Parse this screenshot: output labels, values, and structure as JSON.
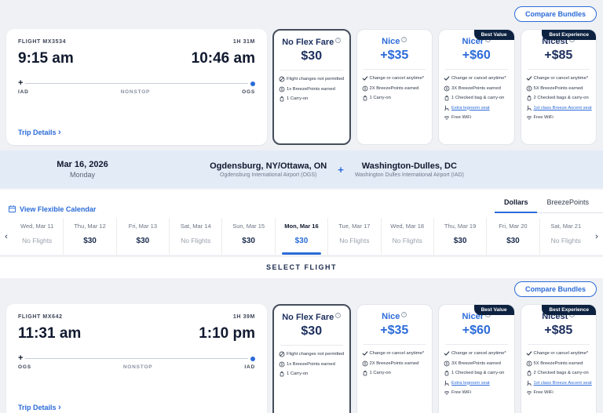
{
  "compare_bundles": "Compare Bundles",
  "select_flight_label": "SELECT FLIGHT",
  "colors": {
    "brand_blue": "#2b6bd9",
    "navy": "#1c2f5e",
    "badge_navy": "#0d2240",
    "banner_bg": "#e3ebf7"
  },
  "sections": {
    "outbound": {
      "flight_number": "FLIGHT MX3534",
      "duration": "1H 31M",
      "depart_time": "9:15 am",
      "arrive_time": "10:46 am",
      "origin": "IAD",
      "stops_label": "NONSTOP",
      "destination": "OGS",
      "trip_details_label": "Trip Details"
    },
    "inbound": {
      "flight_number": "FLIGHT MX642",
      "duration": "1H 39M",
      "depart_time": "11:31 am",
      "arrive_time": "1:10 pm",
      "origin": "OGS",
      "stops_label": "NONSTOP",
      "destination": "IAD",
      "trip_details_label": "Trip Details"
    }
  },
  "fares": [
    {
      "name": "No Flex Fare",
      "price": "$30",
      "theme": "navy",
      "selected": true,
      "badge": "",
      "features": [
        {
          "icon": "no-changes-icon",
          "text": "Flight changes not permitted"
        },
        {
          "icon": "points-icon",
          "text": "1x BreezePoints earned"
        },
        {
          "icon": "bag-icon",
          "text": "1 Carry-on"
        }
      ]
    },
    {
      "name": "Nice",
      "price": "+$35",
      "theme": "blue",
      "selected": false,
      "badge": "",
      "features": [
        {
          "icon": "check-icon",
          "text": "Change or cancel anytime*"
        },
        {
          "icon": "points-icon",
          "text": "2X BreezePoints earned"
        },
        {
          "icon": "bag-icon",
          "text": "1 Carry-on"
        }
      ]
    },
    {
      "name": "Nicer",
      "price": "+$60",
      "theme": "blue",
      "selected": false,
      "badge": "Best Value",
      "features": [
        {
          "icon": "check-icon",
          "text": "Change or cancel anytime*"
        },
        {
          "icon": "points-icon",
          "text": "3X BreezePoints earned"
        },
        {
          "icon": "bag-icon",
          "text": "1 Checked bag & carry-on"
        },
        {
          "icon": "seat-icon",
          "text": "Extra legroom seat",
          "link": true
        },
        {
          "icon": "wifi-icon",
          "text": "Free WiFi"
        }
      ]
    },
    {
      "name": "Nicest",
      "price": "+$85",
      "theme": "navy",
      "selected": false,
      "badge": "Best Experience",
      "features": [
        {
          "icon": "check-icon",
          "text": "Change or cancel anytime*"
        },
        {
          "icon": "points-icon",
          "text": "5X BreezePoints earned"
        },
        {
          "icon": "bag-icon",
          "text": "2 Checked bags & carry-on"
        },
        {
          "icon": "seat-icon",
          "text": "1st class Breeze Ascent seat",
          "link": true
        },
        {
          "icon": "wifi-icon",
          "text": "Free WiFi"
        }
      ]
    }
  ],
  "route_banner": {
    "date": "Mar 16, 2026",
    "day": "Monday",
    "from_city": "Ogdensburg, NY/Ottawa, ON",
    "from_airport": "Ogdensburg International Airport (OGS)",
    "to_city": "Washington-Dulles, DC",
    "to_airport": "Washington Dulles International Airport (IAD)"
  },
  "calendar": {
    "view_flexible_label": "View Flexible Calendar",
    "tabs": [
      {
        "label": "Dollars",
        "active": true
      },
      {
        "label": "BreezePoints",
        "active": false
      }
    ],
    "days": [
      {
        "day": "Wed, Mar 11",
        "price": "No Flights",
        "no_flights": true,
        "selected": false
      },
      {
        "day": "Thu, Mar 12",
        "price": "$30",
        "no_flights": false,
        "selected": false
      },
      {
        "day": "Fri, Mar 13",
        "price": "$30",
        "no_flights": false,
        "selected": false
      },
      {
        "day": "Sat, Mar 14",
        "price": "No Flights",
        "no_flights": true,
        "selected": false
      },
      {
        "day": "Sun, Mar 15",
        "price": "$30",
        "no_flights": false,
        "selected": false
      },
      {
        "day": "Mon, Mar 16",
        "price": "$30",
        "no_flights": false,
        "selected": true
      },
      {
        "day": "Tue, Mar 17",
        "price": "No Flights",
        "no_flights": true,
        "selected": false
      },
      {
        "day": "Wed, Mar 18",
        "price": "No Flights",
        "no_flights": true,
        "selected": false
      },
      {
        "day": "Thu, Mar 19",
        "price": "$30",
        "no_flights": false,
        "selected": false
      },
      {
        "day": "Fri, Mar 20",
        "price": "$30",
        "no_flights": false,
        "selected": false
      },
      {
        "day": "Sat, Mar 21",
        "price": "No Flights",
        "no_flights": true,
        "selected": false
      }
    ]
  }
}
